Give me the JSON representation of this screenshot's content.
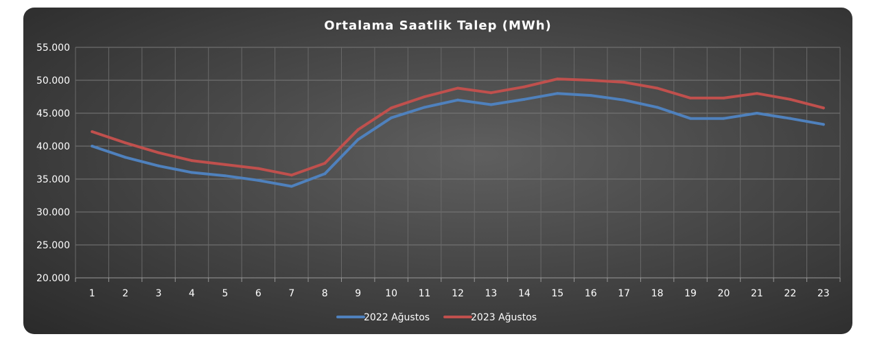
{
  "chart_data": {
    "type": "line",
    "title": "Ortalama Saatlik Talep (MWh)",
    "xlabel": "",
    "ylabel": "",
    "x": [
      1,
      2,
      3,
      4,
      5,
      6,
      7,
      8,
      9,
      10,
      11,
      12,
      13,
      14,
      15,
      16,
      17,
      18,
      19,
      20,
      21,
      22,
      23
    ],
    "y_ticks": [
      "20.000",
      "25.000",
      "30.000",
      "35.000",
      "40.000",
      "45.000",
      "50.000",
      "55.000"
    ],
    "ylim": [
      20000,
      55000
    ],
    "grid": true,
    "legend_position": "bottom",
    "series": [
      {
        "name": "2022 Ağustos",
        "color": "#4f81bd",
        "values": [
          40000,
          38300,
          37000,
          36000,
          35500,
          34800,
          33900,
          35800,
          41000,
          44300,
          45900,
          47000,
          46300,
          47100,
          48000,
          47700,
          47000,
          45900,
          44200,
          44200,
          45000,
          44200,
          43300
        ]
      },
      {
        "name": "2023 Ağustos",
        "color": "#c0504d",
        "values": [
          42200,
          40500,
          39000,
          37800,
          37200,
          36600,
          35600,
          37400,
          42500,
          45800,
          47500,
          48800,
          48100,
          49000,
          50200,
          50000,
          49700,
          48800,
          47300,
          47300,
          48000,
          47100,
          45800
        ]
      }
    ]
  }
}
